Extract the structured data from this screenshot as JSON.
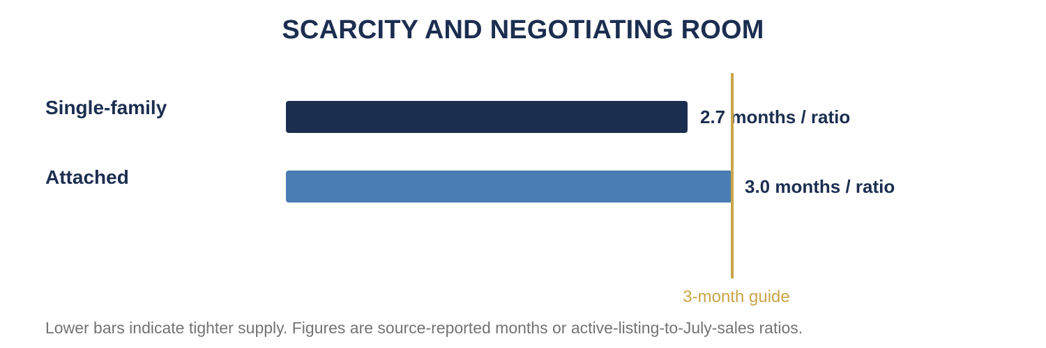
{
  "title": "SCARCITY AND NEGOTIATING ROOM",
  "footnote": "Lower bars indicate tighter supply. Figures are source-reported months or active-listing-to-July-sales ratios.",
  "chart_data": {
    "type": "bar",
    "orientation": "horizontal",
    "title": "SCARCITY AND NEGOTIATING ROOM",
    "categories": [
      "Single-family",
      "Attached"
    ],
    "values": [
      2.7,
      3.0
    ],
    "value_labels": [
      "2.7 months / ratio",
      "3.0 months / ratio"
    ],
    "bar_colors": [
      "#1c2e50",
      "#4a7db4"
    ],
    "reference_line": {
      "value": 3.0,
      "label": "3-month guide",
      "color": "#c9a548"
    },
    "xlim": [
      0,
      4.2
    ],
    "grid": false,
    "legend": "none"
  }
}
